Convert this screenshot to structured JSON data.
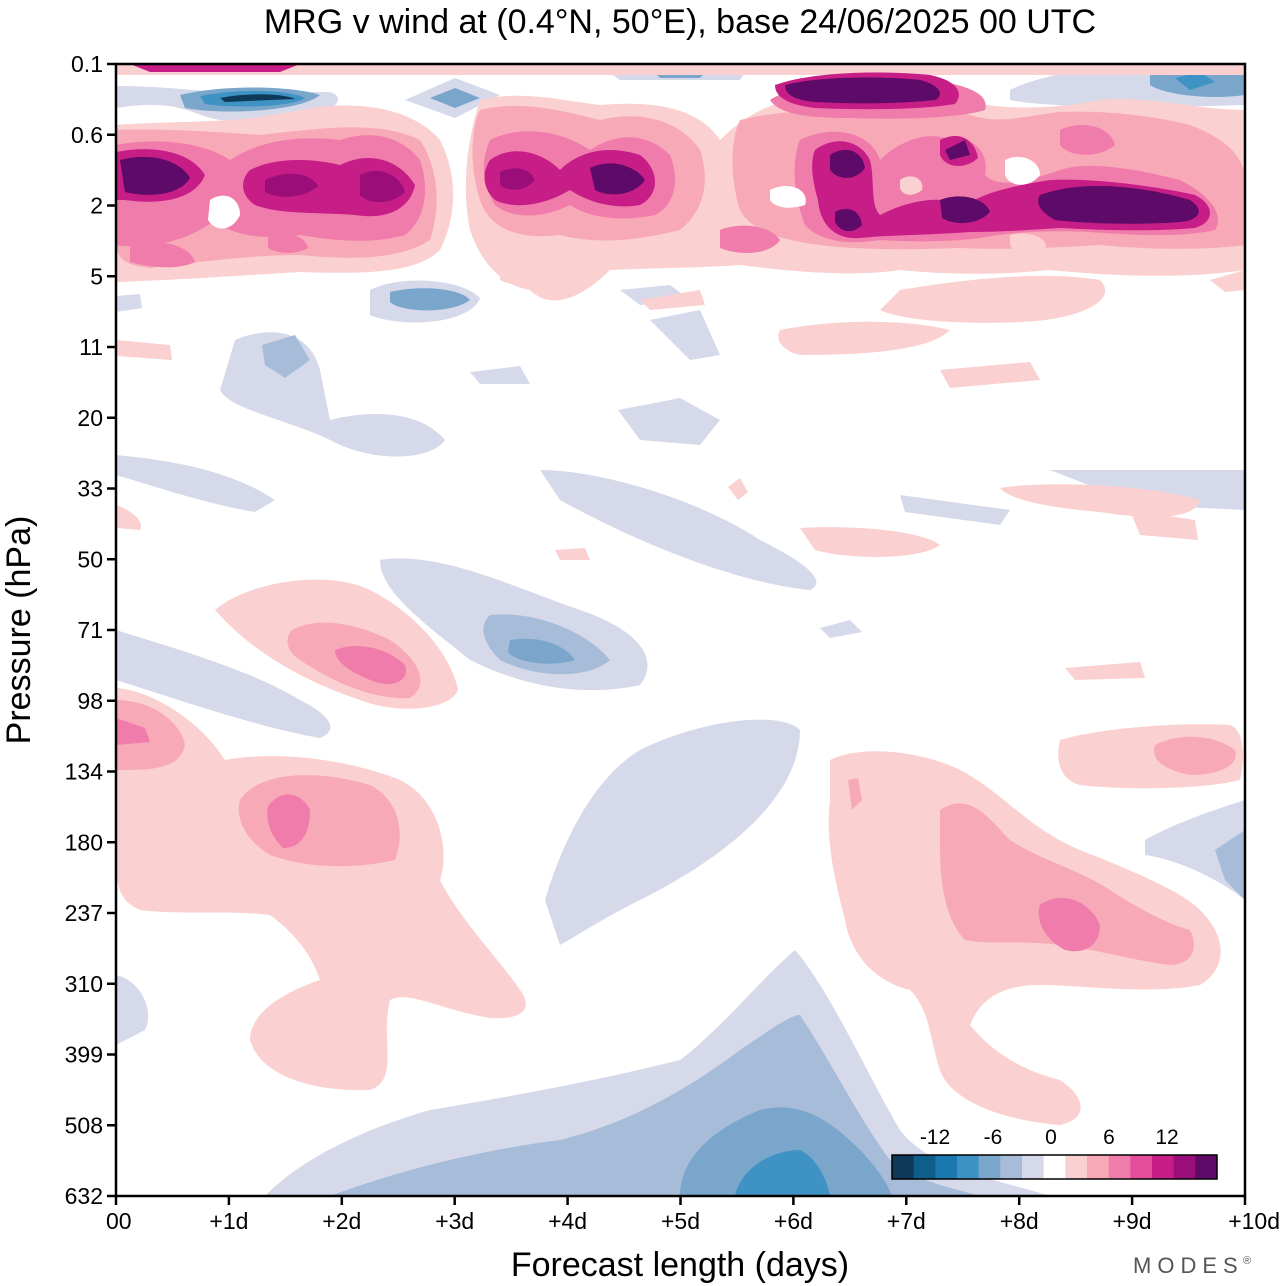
{
  "chart_data": {
    "type": "heatmap",
    "title": "MRG v wind at (0.4°N, 50°E),  base 24/06/2025  00 UTC",
    "xlabel": "Forecast length (days)",
    "ylabel": "Pressure (hPa)",
    "x_ticks": [
      "00",
      "+1d",
      "+2d",
      "+3d",
      "+4d",
      "+5d",
      "+6d",
      "+7d",
      "+8d",
      "+9d",
      "+10d"
    ],
    "xlim": [
      0,
      10
    ],
    "y_ticks": [
      "0.1",
      "0.6",
      "2",
      "5",
      "11",
      "20",
      "33",
      "50",
      "71",
      "98",
      "134",
      "180",
      "237",
      "310",
      "399",
      "508",
      "632"
    ],
    "ylim": [
      0.1,
      632
    ],
    "y_scale": "model-level",
    "colorbar": {
      "tick_labels": [
        "-12",
        "-6",
        "0",
        "6",
        "12"
      ],
      "colors": [
        "#0d3a59",
        "#0f5d8a",
        "#1a79b0",
        "#3f93c4",
        "#7aa6cc",
        "#a7bcd9",
        "#d6d9e9",
        "#ffffff",
        "#fbd0d0",
        "#f7a9b8",
        "#f07cab",
        "#e34d9a",
        "#c71d87",
        "#9b0e79",
        "#5e0a68"
      ],
      "placement": "bottom-right"
    },
    "features": [
      {
        "x": 0.4,
        "y": "1.5",
        "value": 17
      },
      {
        "x": 1.5,
        "y": "1.8",
        "value": 14
      },
      {
        "x": 2.5,
        "y": "1.8",
        "value": 15
      },
      {
        "x": 1.0,
        "y": "0.2",
        "value": -14
      },
      {
        "x": 3.5,
        "y": "1.5",
        "value": 14
      },
      {
        "x": 4.5,
        "y": "1.5",
        "value": 15
      },
      {
        "x": 6.5,
        "y": "0.2",
        "value": 18
      },
      {
        "x": 6.5,
        "y": "1.5",
        "value": 15
      },
      {
        "x": 6.5,
        "y": "3",
        "value": 14
      },
      {
        "x": 7.5,
        "y": "2.5",
        "value": 15
      },
      {
        "x": 8.6,
        "y": "2.3",
        "value": 18
      },
      {
        "x": 9.5,
        "y": "0.2",
        "value": -9
      },
      {
        "x": 3.0,
        "y": "7",
        "value": -5
      },
      {
        "x": 2.3,
        "y": "84",
        "value": 7
      },
      {
        "x": 3.9,
        "y": "80",
        "value": -6
      },
      {
        "x": 0.2,
        "y": "115",
        "value": 7
      },
      {
        "x": 1.5,
        "y": "160",
        "value": 8
      },
      {
        "x": 8.4,
        "y": "250",
        "value": 9
      },
      {
        "x": 9.5,
        "y": "130",
        "value": 6
      },
      {
        "x": 6.0,
        "y": "632",
        "value": -9
      }
    ]
  },
  "brand": "MODES",
  "brand_mark": "®"
}
